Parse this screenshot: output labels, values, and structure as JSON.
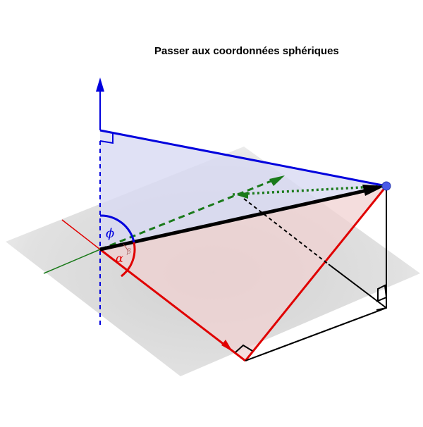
{
  "title": "Passer aux coordonnées sphériques",
  "labels": {
    "phi": "ϕ",
    "alpha": "α",
    "beta": "β"
  },
  "colors": {
    "blue": "#0000dd",
    "red": "#e00000",
    "green": "#1a7a1a",
    "black": "#000000",
    "point": "#4a5ae8",
    "blueFill": "#d8d9f2",
    "redFill": "#f0d2d2",
    "plane": "#d6d6d6"
  }
}
